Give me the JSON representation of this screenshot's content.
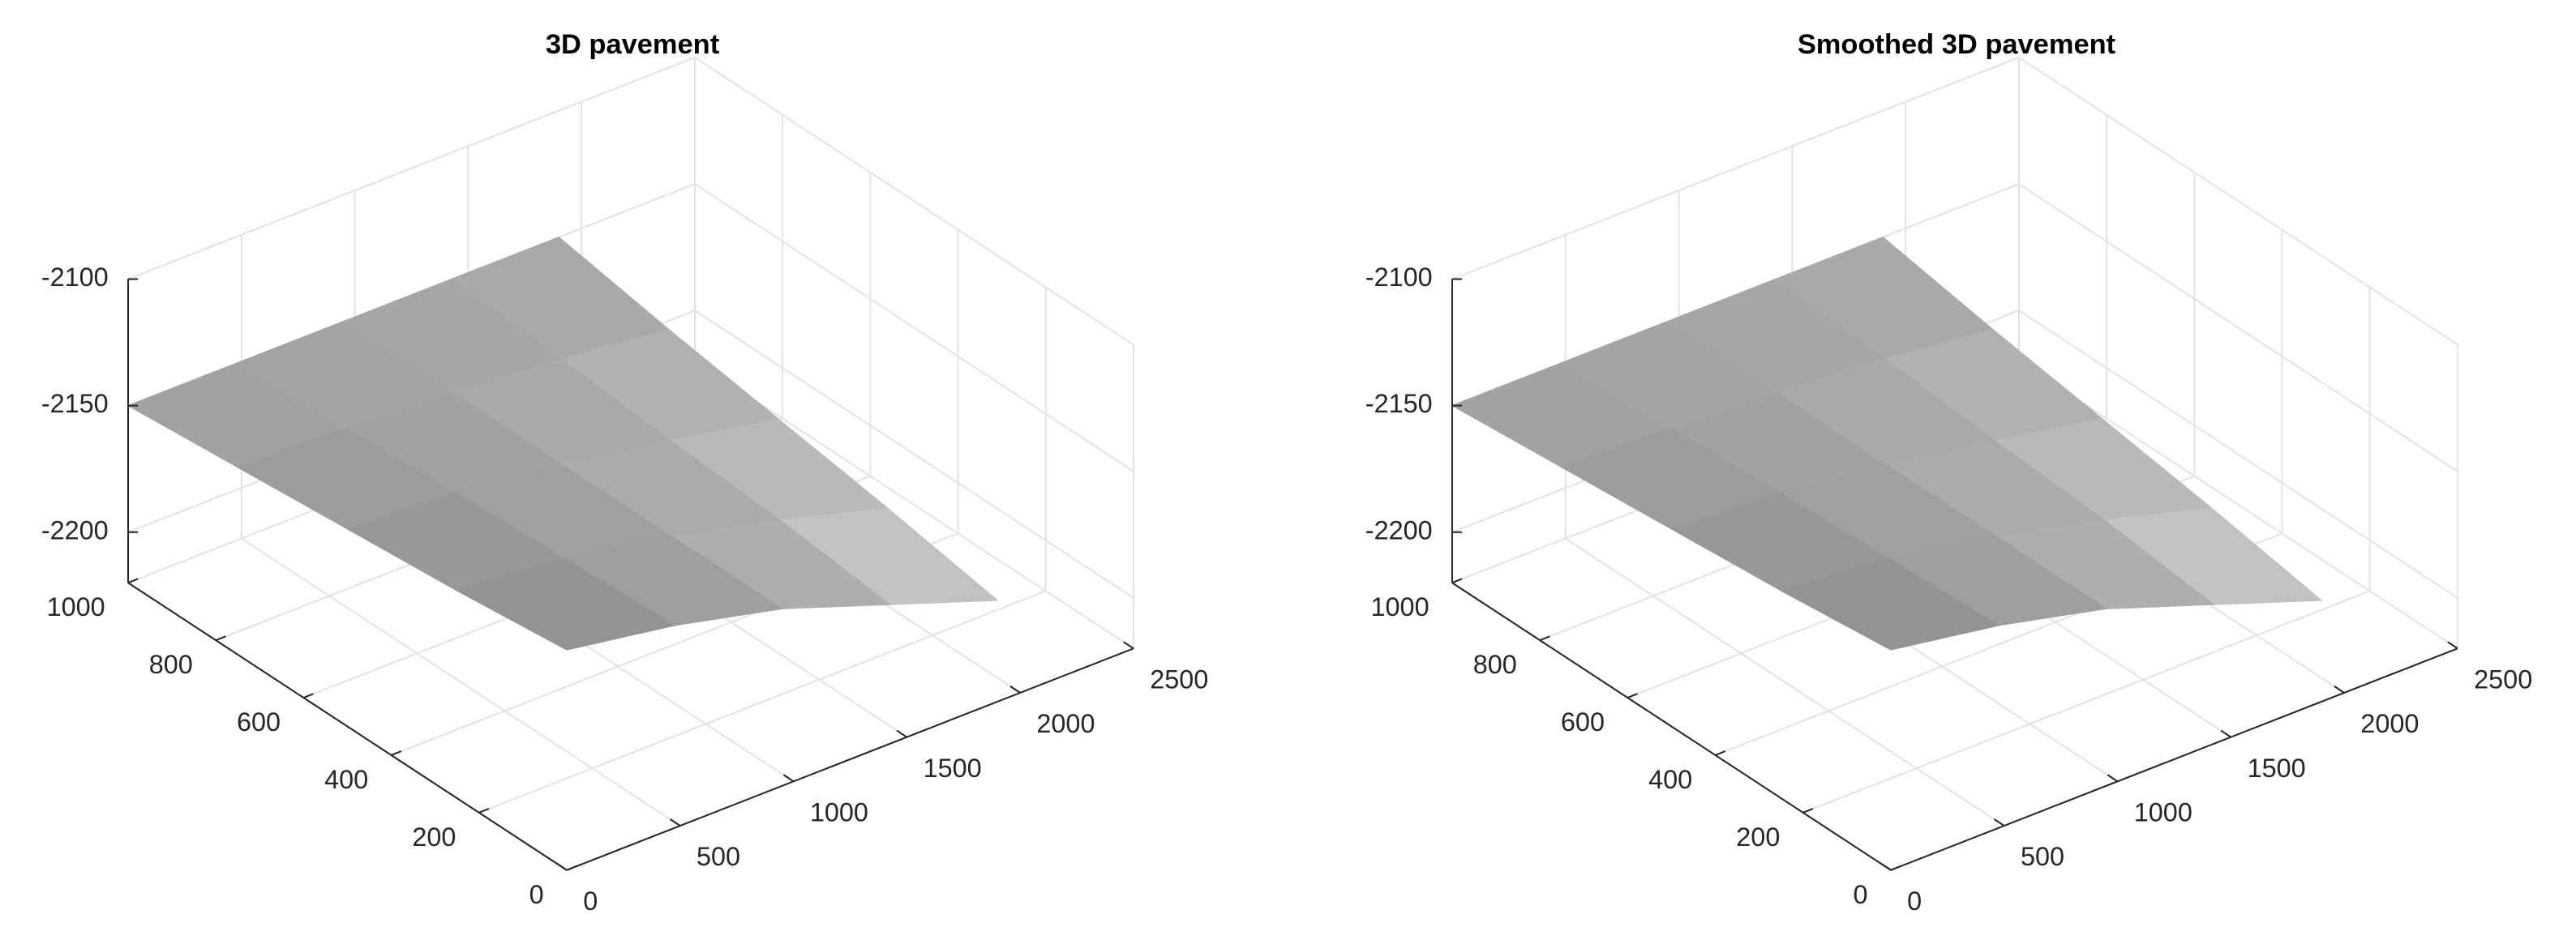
{
  "chart_data": [
    {
      "type": "surface",
      "title": "3D pavement",
      "x": [
        0,
        475,
        950,
        1425,
        1900
      ],
      "y": [
        0,
        250,
        500,
        750,
        1000
      ],
      "z": [
        [
          -2133,
          -2140,
          -2150,
          -2165,
          -2180
        ],
        [
          -2138,
          -2142,
          -2150,
          -2160,
          -2172
        ],
        [
          -2142,
          -2144,
          -2150,
          -2157,
          -2165
        ],
        [
          -2146,
          -2147,
          -2150,
          -2153,
          -2158
        ],
        [
          -2150,
          -2150,
          -2150,
          -2150,
          -2150
        ]
      ],
      "xlim": [
        0,
        2500
      ],
      "ylim": [
        0,
        1000
      ],
      "zlim": [
        -2220,
        -2100
      ],
      "xticks": [
        0,
        500,
        1000,
        1500,
        2000,
        2500
      ],
      "yticks": [
        0,
        200,
        400,
        600,
        800,
        1000
      ],
      "zticks": [
        -2200,
        -2150,
        -2100
      ],
      "colormap": "gray",
      "grid": true
    },
    {
      "type": "surface",
      "title": "Smoothed 3D pavement",
      "x": [
        0,
        475,
        950,
        1425,
        1900
      ],
      "y": [
        0,
        250,
        500,
        750,
        1000
      ],
      "z": [
        [
          -2133,
          -2140,
          -2150,
          -2165,
          -2180
        ],
        [
          -2138,
          -2142,
          -2150,
          -2160,
          -2172
        ],
        [
          -2142,
          -2144,
          -2150,
          -2157,
          -2165
        ],
        [
          -2146,
          -2147,
          -2150,
          -2153,
          -2158
        ],
        [
          -2150,
          -2150,
          -2150,
          -2150,
          -2150
        ]
      ],
      "xlim": [
        0,
        2500
      ],
      "ylim": [
        0,
        1000
      ],
      "zlim": [
        -2220,
        -2100
      ],
      "xticks": [
        0,
        500,
        1000,
        1500,
        2000,
        2500
      ],
      "yticks": [
        0,
        200,
        400,
        600,
        800,
        1000
      ],
      "zticks": [
        -2200,
        -2150,
        -2100
      ],
      "colormap": "gray",
      "grid": true
    }
  ]
}
